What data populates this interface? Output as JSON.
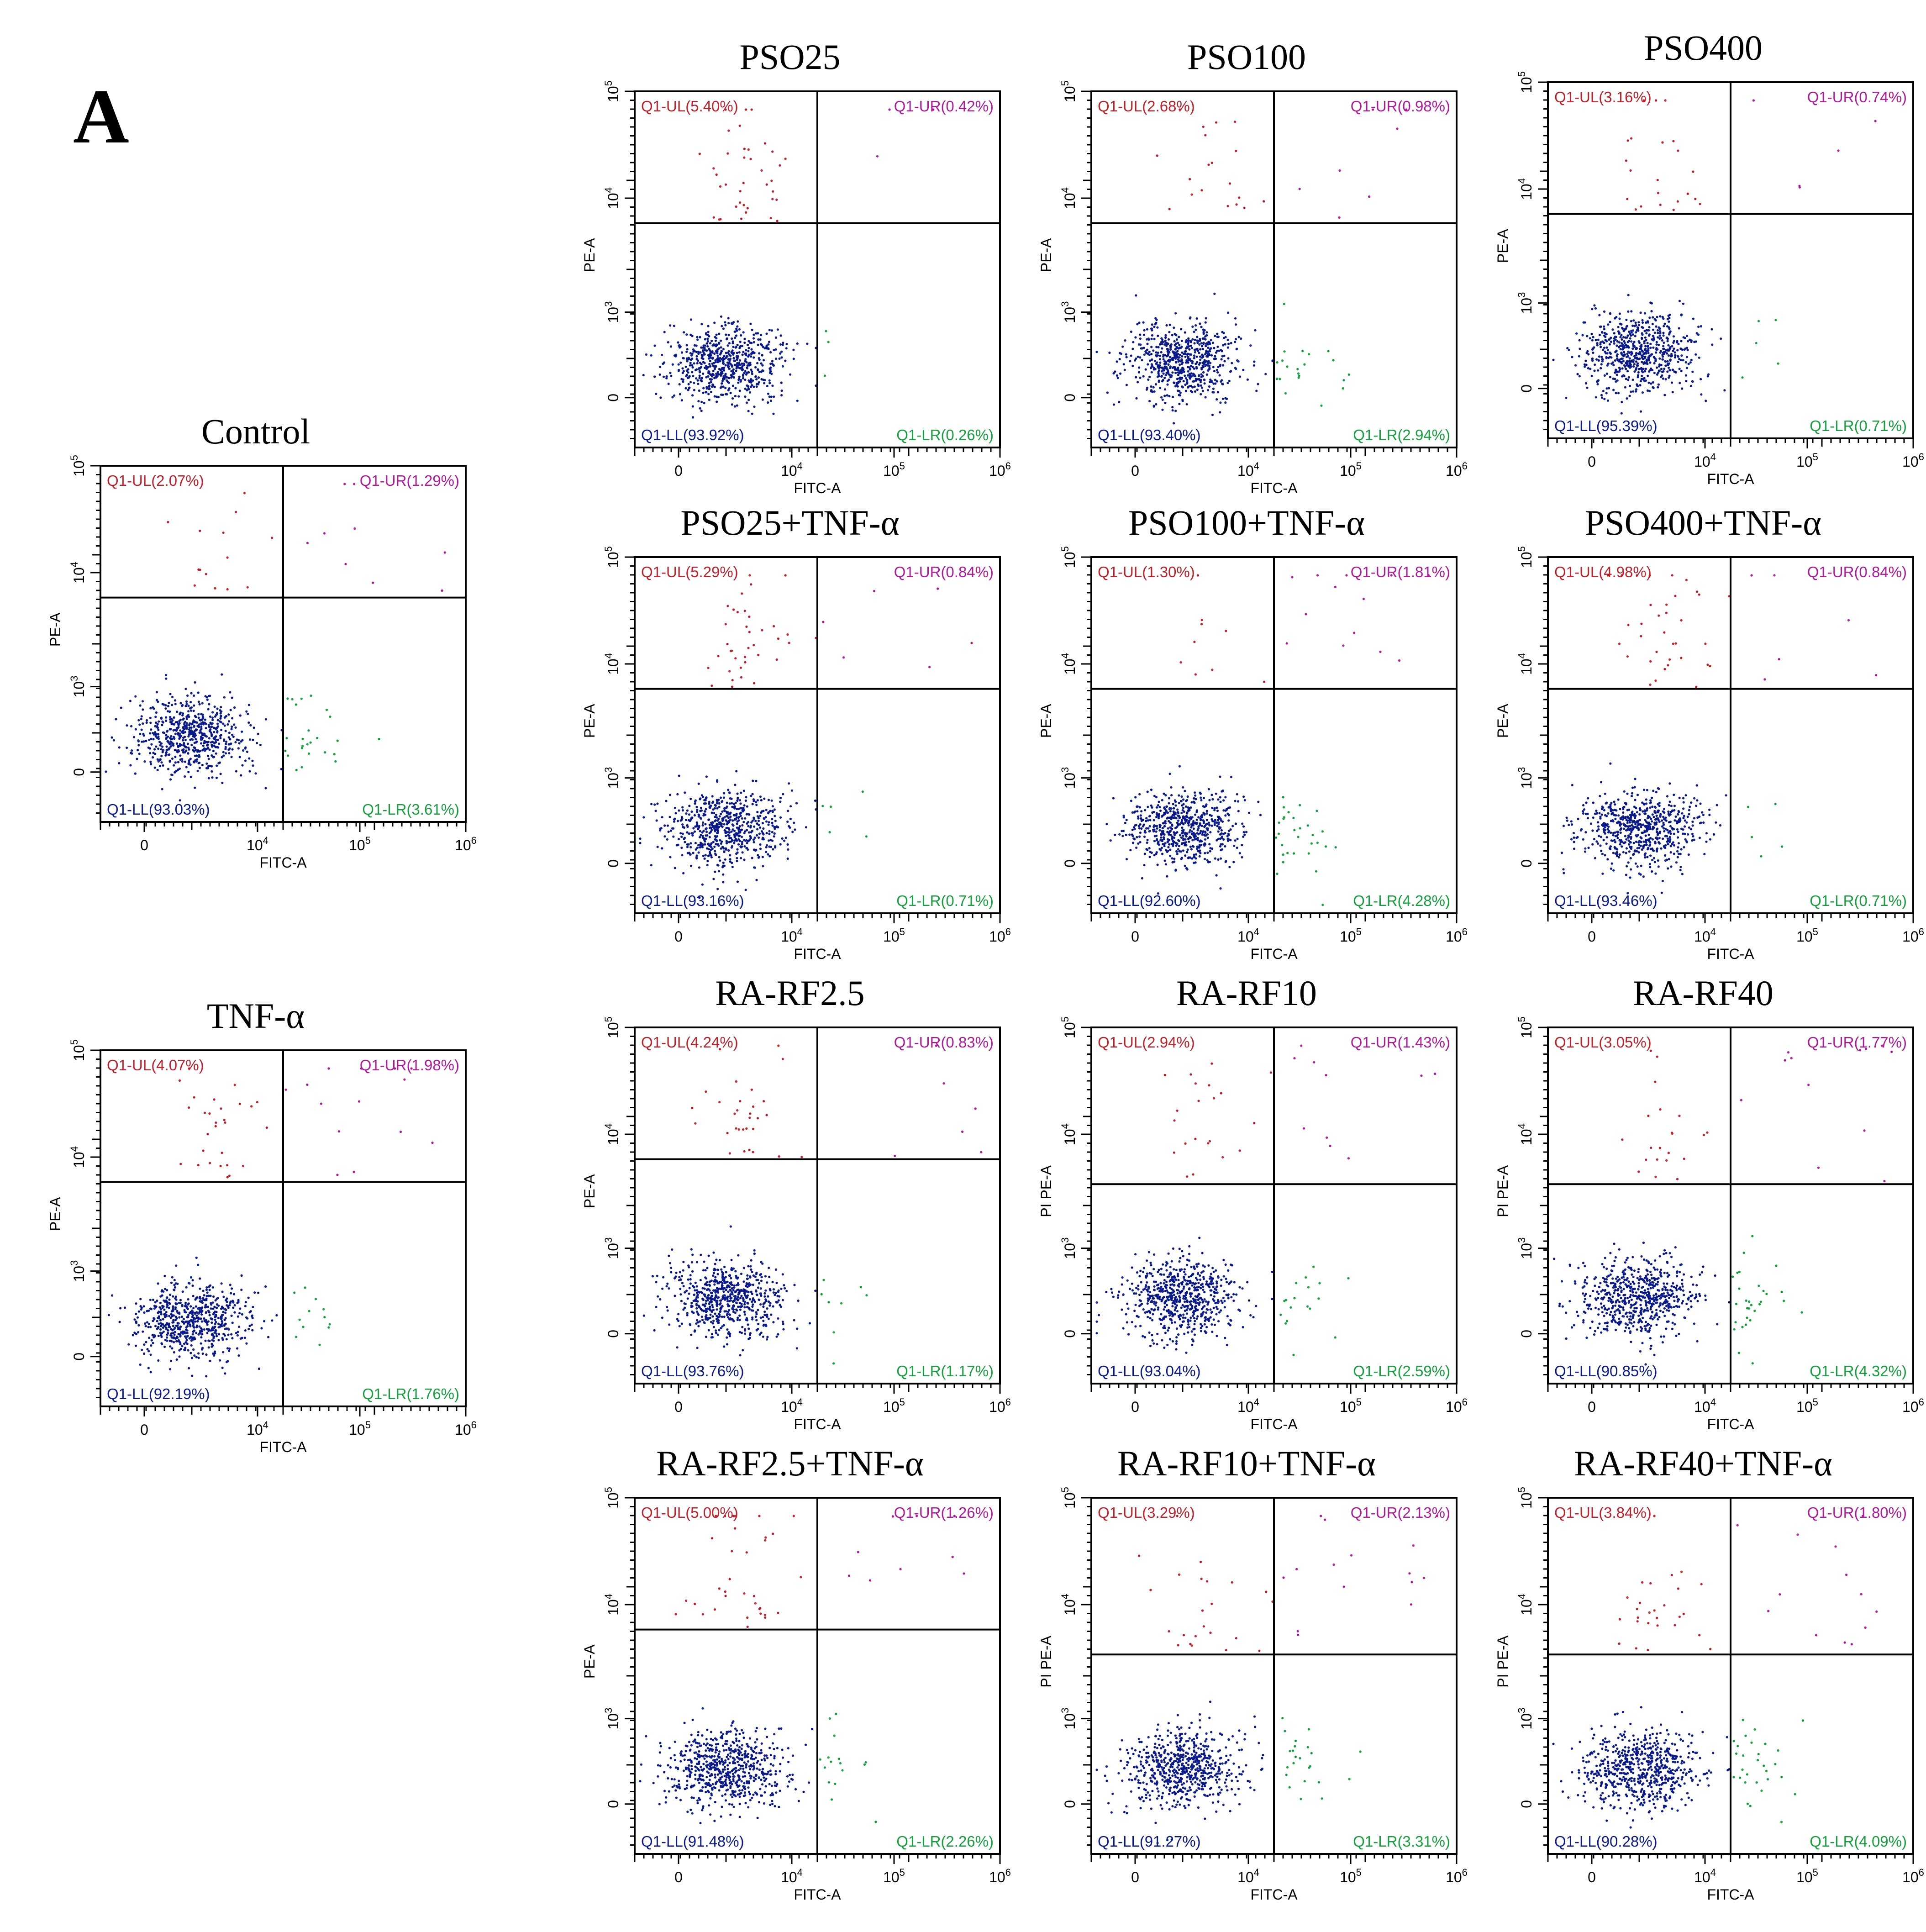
{
  "panel_label": "A",
  "colors": {
    "UL": "#c0202a",
    "UR": "#b01a9a",
    "LL": "#0a1a8c",
    "LR": "#14a03c",
    "axes": "#000000"
  },
  "chart_data": [
    {
      "type": "scatter",
      "title": "Control",
      "xlabel": "FITC-A",
      "ylabel": "PE-A",
      "xlim": [
        "-10^3",
        "10^6"
      ],
      "ylim": [
        "-10^3",
        "10^5"
      ],
      "x_ticks": [
        "0",
        "10^4",
        "10^5",
        "10^6"
      ],
      "y_ticks": [
        "0",
        "10^3",
        "10^4",
        "10^5"
      ],
      "quadrants": {
        "UL": "Q1-UL(2.07%)",
        "UR": "Q1-UR(1.29%)",
        "LL": "Q1-LL(93.03%)",
        "LR": "Q1-LR(3.61%)"
      },
      "percentages": {
        "UL": 2.07,
        "UR": 1.29,
        "LL": 93.03,
        "LR": 3.61
      },
      "gate_x": 0.5,
      "gate_y": 0.63
    },
    {
      "type": "scatter",
      "title": "TNF-α",
      "xlabel": "FITC-A",
      "ylabel": "PE-A",
      "xlim": [
        "-10^3",
        "10^6"
      ],
      "ylim": [
        "-10^3",
        "10^5"
      ],
      "x_ticks": [
        "0",
        "10^4",
        "10^5",
        "10^6"
      ],
      "y_ticks": [
        "0",
        "10^3",
        "10^4",
        "10^5"
      ],
      "quadrants": {
        "UL": "Q1-UL(4.07%)",
        "UR": "Q1-UR(1.98%)",
        "LL": "Q1-LL(92.19%)",
        "LR": "Q1-LR(1.76%)"
      },
      "percentages": {
        "UL": 4.07,
        "UR": 1.98,
        "LL": 92.19,
        "LR": 1.76
      },
      "gate_x": 0.5,
      "gate_y": 0.63
    },
    {
      "type": "scatter",
      "title": "PSO25",
      "xlabel": "FITC-A",
      "ylabel": "PE-A",
      "xlim": [
        "-10^3",
        "10^6"
      ],
      "ylim": [
        "-10^3",
        "10^5"
      ],
      "x_ticks": [
        "0",
        "10^4",
        "10^5",
        "10^6"
      ],
      "y_ticks": [
        "0",
        "10^3",
        "10^4",
        "10^5"
      ],
      "quadrants": {
        "UL": "Q1-UL(5.40%)",
        "UR": "Q1-UR(0.42%)",
        "LL": "Q1-LL(93.92%)",
        "LR": "Q1-LR(0.26%)"
      },
      "percentages": {
        "UL": 5.4,
        "UR": 0.42,
        "LL": 93.92,
        "LR": 0.26
      },
      "gate_x": 0.5,
      "gate_y": 0.63
    },
    {
      "type": "scatter",
      "title": "PSO100",
      "xlabel": "FITC-A",
      "ylabel": "PE-A",
      "xlim": [
        "-10^3",
        "10^6"
      ],
      "ylim": [
        "-10^3",
        "10^5"
      ],
      "x_ticks": [
        "0",
        "10^4",
        "10^5",
        "10^6"
      ],
      "y_ticks": [
        "0",
        "10^3",
        "10^4",
        "10^5"
      ],
      "quadrants": {
        "UL": "Q1-UL(2.68%)",
        "UR": "Q1-UR(0.98%)",
        "LL": "Q1-LL(93.40%)",
        "LR": "Q1-LR(2.94%)"
      },
      "percentages": {
        "UL": 2.68,
        "UR": 0.98,
        "LL": 93.4,
        "LR": 2.94
      },
      "gate_x": 0.5,
      "gate_y": 0.63
    },
    {
      "type": "scatter",
      "title": "PSO400",
      "xlabel": "FITC-A",
      "ylabel": "PE-A",
      "xlim": [
        "-10^3",
        "10^6"
      ],
      "ylim": [
        "-10^3",
        "10^5"
      ],
      "x_ticks": [
        "0",
        "10^4",
        "10^5",
        "10^6"
      ],
      "y_ticks": [
        "0",
        "10^3",
        "10^4",
        "10^5"
      ],
      "quadrants": {
        "UL": "Q1-UL(3.16%)",
        "UR": "Q1-UR(0.74%)",
        "LL": "Q1-LL(95.39%)",
        "LR": "Q1-LR(0.71%)"
      },
      "percentages": {
        "UL": 3.16,
        "UR": 0.74,
        "LL": 95.39,
        "LR": 0.71
      },
      "gate_x": 0.5,
      "gate_y": 0.63
    },
    {
      "type": "scatter",
      "title": "PSO25+TNF-α",
      "xlabel": "FITC-A",
      "ylabel": "PE-A",
      "xlim": [
        "-10^3",
        "10^6"
      ],
      "ylim": [
        "-10^3",
        "10^5"
      ],
      "x_ticks": [
        "0",
        "10^4",
        "10^5",
        "10^6"
      ],
      "y_ticks": [
        "0",
        "10^3",
        "10^4",
        "10^5"
      ],
      "quadrants": {
        "UL": "Q1-UL(5.29%)",
        "UR": "Q1-UR(0.84%)",
        "LL": "Q1-LL(93.16%)",
        "LR": "Q1-LR(0.71%)"
      },
      "percentages": {
        "UL": 5.29,
        "UR": 0.84,
        "LL": 93.16,
        "LR": 0.71
      },
      "gate_x": 0.5,
      "gate_y": 0.63
    },
    {
      "type": "scatter",
      "title": "PSO100+TNF-α",
      "xlabel": "FITC-A",
      "ylabel": "PE-A",
      "xlim": [
        "-10^3",
        "10^6"
      ],
      "ylim": [
        "-10^3",
        "10^5"
      ],
      "x_ticks": [
        "0",
        "10^4",
        "10^5",
        "10^6"
      ],
      "y_ticks": [
        "0",
        "10^3",
        "10^4",
        "10^5"
      ],
      "quadrants": {
        "UL": "Q1-UL(1.30%)",
        "UR": "Q1-UR(1.81%)",
        "LL": "Q1-LL(92.60%)",
        "LR": "Q1-LR(4.28%)"
      },
      "percentages": {
        "UL": 1.3,
        "UR": 1.81,
        "LL": 92.6,
        "LR": 4.28
      },
      "gate_x": 0.5,
      "gate_y": 0.63
    },
    {
      "type": "scatter",
      "title": "PSO400+TNF-α",
      "xlabel": "FITC-A",
      "ylabel": "PE-A",
      "xlim": [
        "-10^3",
        "10^6"
      ],
      "ylim": [
        "-10^3",
        "10^5"
      ],
      "x_ticks": [
        "0",
        "10^4",
        "10^5",
        "10^6"
      ],
      "y_ticks": [
        "0",
        "10^3",
        "10^4",
        "10^5"
      ],
      "quadrants": {
        "UL": "Q1-UL(4.98%)",
        "UR": "Q1-UR(0.84%)",
        "LL": "Q1-LL(93.46%)",
        "LR": "Q1-LR(0.71%)"
      },
      "percentages": {
        "UL": 4.98,
        "UR": 0.84,
        "LL": 93.46,
        "LR": 0.71
      },
      "gate_x": 0.5,
      "gate_y": 0.63
    },
    {
      "type": "scatter",
      "title": "RA-RF2.5",
      "xlabel": "FITC-A",
      "ylabel": "PE-A",
      "xlim": [
        "-10^3",
        "10^6"
      ],
      "ylim": [
        "-10^3",
        "10^5"
      ],
      "x_ticks": [
        "0",
        "10^4",
        "10^5",
        "10^6"
      ],
      "y_ticks": [
        "0",
        "10^3",
        "10^4",
        "10^5"
      ],
      "quadrants": {
        "UL": "Q1-UL(4.24%)",
        "UR": "Q1-UR(0.83%)",
        "LL": "Q1-LL(93.76%)",
        "LR": "Q1-LR(1.17%)"
      },
      "percentages": {
        "UL": 4.24,
        "UR": 0.83,
        "LL": 93.76,
        "LR": 1.17
      },
      "gate_x": 0.5,
      "gate_y": 0.63
    },
    {
      "type": "scatter",
      "title": "RA-RF10",
      "xlabel": "FITC-A",
      "ylabel": "PI PE-A",
      "xlim": [
        "-10^3",
        "10^6"
      ],
      "ylim": [
        "-10^3",
        "10^5"
      ],
      "x_ticks": [
        "0",
        "10^4",
        "10^5",
        "10^6"
      ],
      "y_ticks": [
        "0",
        "10^3",
        "10^4",
        "10^5"
      ],
      "quadrants": {
        "UL": "Q1-UL(2.94%)",
        "UR": "Q1-UR(1.43%)",
        "LL": "Q1-LL(93.04%)",
        "LR": "Q1-LR(2.59%)"
      },
      "percentages": {
        "UL": 2.94,
        "UR": 1.43,
        "LL": 93.04,
        "LR": 2.59
      },
      "gate_x": 0.5,
      "gate_y": 0.56
    },
    {
      "type": "scatter",
      "title": "RA-RF40",
      "xlabel": "FITC-A",
      "ylabel": "PI PE-A",
      "xlim": [
        "-10^3",
        "10^6"
      ],
      "ylim": [
        "-10^3",
        "10^5"
      ],
      "x_ticks": [
        "0",
        "10^4",
        "10^5",
        "10^6"
      ],
      "y_ticks": [
        "0",
        "10^3",
        "10^4",
        "10^5"
      ],
      "quadrants": {
        "UL": "Q1-UL(3.05%)",
        "UR": "Q1-UR(1.77%)",
        "LL": "Q1-LL(90.85%)",
        "LR": "Q1-LR(4.32%)"
      },
      "percentages": {
        "UL": 3.05,
        "UR": 1.77,
        "LL": 90.85,
        "LR": 4.32
      },
      "gate_x": 0.5,
      "gate_y": 0.56
    },
    {
      "type": "scatter",
      "title": "RA-RF2.5+TNF-α",
      "xlabel": "FITC-A",
      "ylabel": "PE-A",
      "xlim": [
        "-10^3",
        "10^6"
      ],
      "ylim": [
        "-10^3",
        "10^5"
      ],
      "x_ticks": [
        "0",
        "10^4",
        "10^5",
        "10^6"
      ],
      "y_ticks": [
        "0",
        "10^3",
        "10^4",
        "10^5"
      ],
      "quadrants": {
        "UL": "Q1-UL(5.00%)",
        "UR": "Q1-UR(1.26%)",
        "LL": "Q1-LL(91.48%)",
        "LR": "Q1-LR(2.26%)"
      },
      "percentages": {
        "UL": 5.0,
        "UR": 1.26,
        "LL": 91.48,
        "LR": 2.26
      },
      "gate_x": 0.5,
      "gate_y": 0.63
    },
    {
      "type": "scatter",
      "title": "RA-RF10+TNF-α",
      "xlabel": "FITC-A",
      "ylabel": "PI PE-A",
      "xlim": [
        "-10^3",
        "10^6"
      ],
      "ylim": [
        "-10^3",
        "10^5"
      ],
      "x_ticks": [
        "0",
        "10^4",
        "10^5",
        "10^6"
      ],
      "y_ticks": [
        "0",
        "10^3",
        "10^4",
        "10^5"
      ],
      "quadrants": {
        "UL": "Q1-UL(3.29%)",
        "UR": "Q1-UR(2.13%)",
        "LL": "Q1-LL(91.27%)",
        "LR": "Q1-LR(3.31%)"
      },
      "percentages": {
        "UL": 3.29,
        "UR": 2.13,
        "LL": 91.27,
        "LR": 3.31
      },
      "gate_x": 0.5,
      "gate_y": 0.56
    },
    {
      "type": "scatter",
      "title": "RA-RF40+TNF-α",
      "xlabel": "FITC-A",
      "ylabel": "PI PE-A",
      "xlim": [
        "-10^3",
        "10^6"
      ],
      "ylim": [
        "-10^3",
        "10^5"
      ],
      "x_ticks": [
        "0",
        "10^4",
        "10^5",
        "10^6"
      ],
      "y_ticks": [
        "0",
        "10^3",
        "10^4",
        "10^5"
      ],
      "quadrants": {
        "UL": "Q1-UL(3.84%)",
        "UR": "Q1-UR(1.80%)",
        "LL": "Q1-LL(90.28%)",
        "LR": "Q1-LR(4.09%)"
      },
      "percentages": {
        "UL": 3.84,
        "UR": 1.8,
        "LL": 90.28,
        "LR": 4.09
      },
      "gate_x": 0.5,
      "gate_y": 0.56
    }
  ]
}
